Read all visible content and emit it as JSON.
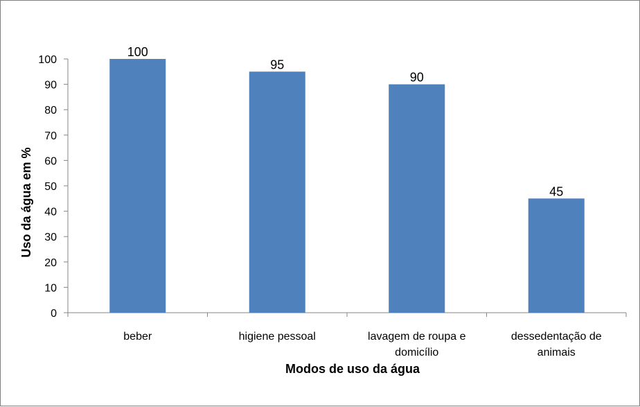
{
  "chart_data": {
    "type": "bar",
    "title": "",
    "xlabel": "Modos de uso da água",
    "ylabel": "Uso da água em  %",
    "categories": [
      [
        "beber"
      ],
      [
        "higiene pessoal"
      ],
      [
        "lavagem de roupa e",
        "domicílio"
      ],
      [
        "dessedentação de",
        "animais"
      ]
    ],
    "values": [
      100,
      95,
      90,
      45
    ],
    "data_labels": [
      "100",
      "95",
      "90",
      "45"
    ],
    "yticks": [
      "0",
      "10",
      "20",
      "30",
      "40",
      "50",
      "60",
      "70",
      "80",
      "90",
      "100"
    ],
    "ylim": [
      0,
      100
    ],
    "grid": false,
    "legend": "none",
    "bar_color": "#4f81bd",
    "axis_color": "#868686"
  }
}
